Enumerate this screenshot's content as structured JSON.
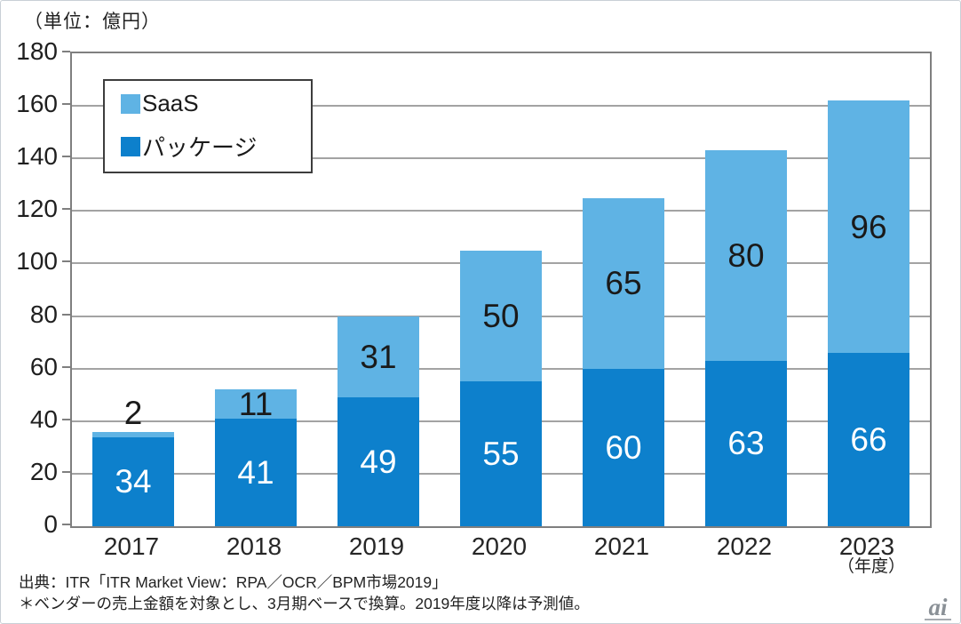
{
  "unit_label": "（単位：億円）",
  "x_axis_unit": "（年度）",
  "legend": {
    "items": [
      {
        "label": "SaaS",
        "color": "#5fb3e4"
      },
      {
        "label": "パッケージ",
        "color": "#0d80cc"
      }
    ]
  },
  "chart_data": {
    "type": "bar",
    "stacked": true,
    "title": "",
    "xlabel": "（年度）",
    "ylabel": "（単位：億円）",
    "categories": [
      "2017",
      "2018",
      "2019",
      "2020",
      "2021",
      "2022",
      "2023"
    ],
    "series": [
      {
        "name": "パッケージ",
        "color": "#0d80cc",
        "label_color": "#ffffff",
        "values": [
          34,
          41,
          49,
          55,
          60,
          63,
          66
        ]
      },
      {
        "name": "SaaS",
        "color": "#5fb3e4",
        "label_color": "#1a1a1a",
        "values": [
          2,
          11,
          31,
          50,
          65,
          80,
          96
        ]
      }
    ],
    "totals": [
      36,
      52,
      80,
      105,
      125,
      143,
      162
    ],
    "ylim": [
      0,
      180
    ],
    "yticks": [
      0,
      20,
      40,
      60,
      80,
      100,
      120,
      140,
      160,
      180
    ],
    "grid": true,
    "legend_position": "top-left"
  },
  "source": {
    "line1": "出典：ITR「ITR Market View：RPA／OCR／BPM市場2019」",
    "line2": "＊ベンダーの売上金額を対象とし、3月期ベースで換算。2019年度以降は予測値。"
  },
  "logo": {
    "text": "ai"
  }
}
